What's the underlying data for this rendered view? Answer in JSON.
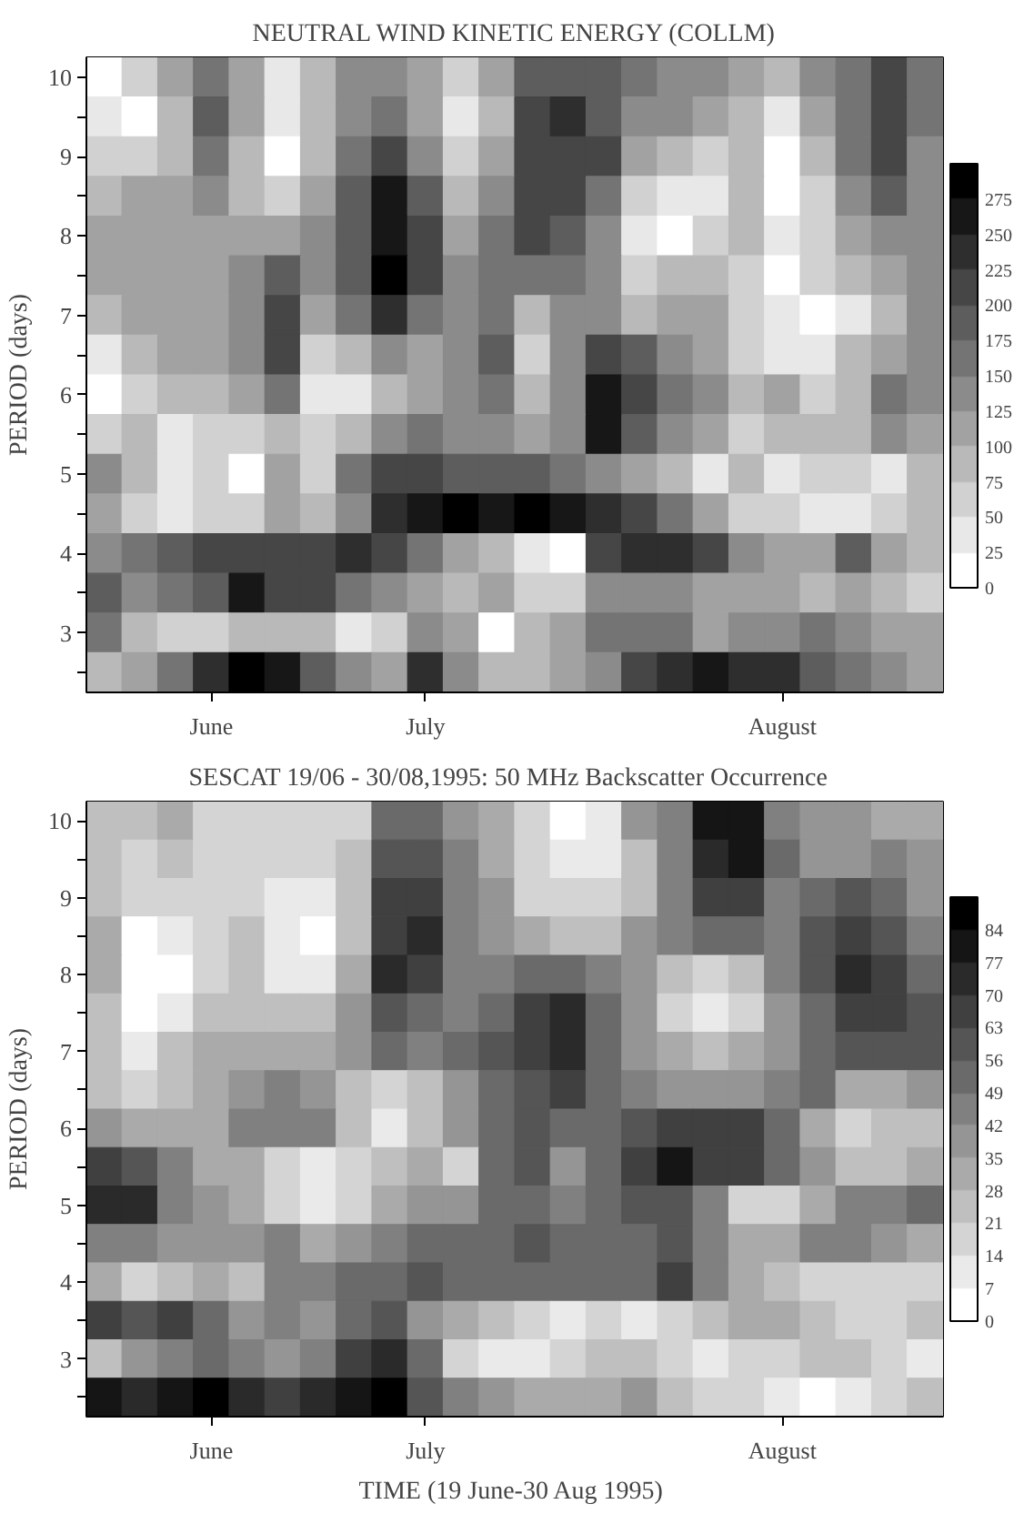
{
  "chart_data": [
    {
      "type": "heatmap",
      "title": "NEUTRAL WIND KINETIC ENERGY (COLLM)",
      "ylabel": "PERIOD (days)",
      "categories": [
        null,
        null,
        null,
        "June",
        null,
        null,
        null,
        null,
        null,
        "July",
        null,
        null,
        null,
        null,
        null,
        null,
        null,
        null,
        null,
        "August",
        null,
        null,
        null,
        null
      ],
      "y_categories": [
        "10",
        null,
        "9",
        null,
        "8",
        null,
        "7",
        null,
        "6",
        null,
        "5",
        null,
        "4",
        null,
        "3",
        null
      ],
      "clim": [
        0,
        300
      ],
      "cticks": [
        0,
        25,
        50,
        75,
        100,
        125,
        150,
        175,
        200,
        225,
        250,
        275
      ],
      "cells": [
        [
          12,
          62,
          112,
          162,
          112,
          37,
          87,
          137,
          137,
          112,
          62,
          112,
          187,
          187,
          187,
          162,
          137,
          137,
          112,
          87,
          137,
          162,
          212,
          162
        ],
        [
          37,
          12,
          87,
          187,
          112,
          37,
          87,
          137,
          162,
          112,
          37,
          87,
          212,
          237,
          187,
          137,
          137,
          112,
          87,
          37,
          112,
          162,
          212,
          162
        ],
        [
          62,
          62,
          87,
          162,
          87,
          12,
          87,
          162,
          212,
          137,
          62,
          112,
          212,
          212,
          212,
          112,
          87,
          62,
          87,
          12,
          87,
          162,
          212,
          137
        ],
        [
          87,
          112,
          112,
          137,
          87,
          62,
          112,
          187,
          262,
          187,
          87,
          137,
          212,
          212,
          162,
          62,
          37,
          37,
          87,
          12,
          62,
          137,
          187,
          137
        ],
        [
          112,
          112,
          112,
          112,
          112,
          112,
          137,
          187,
          262,
          212,
          112,
          162,
          212,
          187,
          137,
          37,
          12,
          62,
          87,
          37,
          62,
          112,
          137,
          137
        ],
        [
          112,
          112,
          112,
          112,
          137,
          187,
          137,
          187,
          287,
          212,
          137,
          162,
          162,
          162,
          137,
          62,
          87,
          87,
          62,
          12,
          62,
          87,
          112,
          137
        ],
        [
          87,
          112,
          112,
          112,
          137,
          212,
          112,
          162,
          237,
          162,
          137,
          162,
          87,
          137,
          137,
          87,
          112,
          112,
          62,
          37,
          12,
          37,
          87,
          137
        ],
        [
          37,
          87,
          112,
          112,
          137,
          212,
          62,
          87,
          137,
          112,
          137,
          187,
          62,
          137,
          212,
          187,
          137,
          112,
          62,
          37,
          37,
          87,
          112,
          137
        ],
        [
          12,
          62,
          87,
          87,
          112,
          162,
          37,
          37,
          87,
          112,
          137,
          162,
          87,
          137,
          262,
          212,
          162,
          137,
          87,
          112,
          62,
          87,
          162,
          137
        ],
        [
          62,
          87,
          37,
          62,
          62,
          87,
          62,
          87,
          137,
          162,
          137,
          137,
          112,
          137,
          262,
          187,
          137,
          112,
          62,
          87,
          87,
          87,
          137,
          112
        ],
        [
          137,
          87,
          37,
          62,
          12,
          112,
          62,
          162,
          212,
          212,
          187,
          187,
          187,
          162,
          137,
          112,
          87,
          37,
          87,
          37,
          62,
          62,
          37,
          87
        ],
        [
          112,
          62,
          37,
          62,
          62,
          112,
          87,
          137,
          237,
          262,
          287,
          262,
          287,
          262,
          237,
          212,
          162,
          112,
          62,
          62,
          37,
          37,
          62,
          87
        ],
        [
          137,
          162,
          187,
          212,
          212,
          212,
          212,
          237,
          212,
          162,
          112,
          87,
          37,
          12,
          212,
          237,
          237,
          212,
          137,
          112,
          112,
          187,
          112,
          87
        ],
        [
          187,
          137,
          162,
          187,
          262,
          212,
          212,
          162,
          137,
          112,
          87,
          112,
          62,
          62,
          137,
          137,
          137,
          112,
          112,
          112,
          87,
          112,
          87,
          62
        ],
        [
          162,
          87,
          62,
          62,
          87,
          87,
          87,
          37,
          62,
          137,
          112,
          12,
          87,
          112,
          162,
          162,
          162,
          112,
          137,
          137,
          162,
          137,
          112,
          112
        ],
        [
          87,
          112,
          162,
          237,
          287,
          262,
          187,
          137,
          112,
          237,
          137,
          87,
          87,
          112,
          137,
          212,
          237,
          262,
          237,
          237,
          187,
          162,
          137,
          112
        ]
      ]
    },
    {
      "type": "heatmap",
      "title": "SESCAT  19/06 - 30/08,1995:  50 MHz Backscatter Occurrence",
      "xlabel": "TIME  (19 June-30 Aug 1995)",
      "ylabel": "PERIOD (days)",
      "categories": [
        null,
        null,
        null,
        "June",
        null,
        null,
        null,
        null,
        null,
        "July",
        null,
        null,
        null,
        null,
        null,
        null,
        null,
        null,
        null,
        "August",
        null,
        null,
        null,
        null
      ],
      "y_categories": [
        "10",
        null,
        "9",
        null,
        "8",
        null,
        "7",
        null,
        "6",
        null,
        "5",
        null,
        "4",
        null,
        "3",
        null
      ],
      "clim": [
        0,
        91
      ],
      "cticks": [
        0,
        7,
        14,
        21,
        28,
        35,
        42,
        49,
        56,
        63,
        70,
        77,
        84
      ],
      "cells": [
        [
          24,
          24,
          31,
          17,
          17,
          17,
          17,
          17,
          52,
          52,
          38,
          31,
          17,
          3,
          10,
          38,
          45,
          80,
          80,
          45,
          38,
          38,
          31,
          31
        ],
        [
          24,
          17,
          24,
          17,
          17,
          17,
          17,
          24,
          59,
          59,
          45,
          31,
          17,
          10,
          10,
          24,
          45,
          73,
          80,
          52,
          38,
          38,
          45,
          38
        ],
        [
          24,
          17,
          17,
          17,
          17,
          10,
          10,
          24,
          66,
          66,
          45,
          38,
          17,
          17,
          17,
          24,
          45,
          66,
          66,
          45,
          52,
          59,
          52,
          38
        ],
        [
          31,
          3,
          10,
          17,
          24,
          10,
          3,
          24,
          66,
          73,
          45,
          38,
          31,
          24,
          24,
          38,
          45,
          52,
          52,
          45,
          59,
          66,
          59,
          45
        ],
        [
          31,
          3,
          3,
          17,
          24,
          10,
          10,
          31,
          73,
          66,
          45,
          45,
          52,
          52,
          45,
          38,
          24,
          17,
          24,
          45,
          59,
          73,
          66,
          52
        ],
        [
          24,
          3,
          10,
          24,
          24,
          24,
          24,
          38,
          59,
          52,
          45,
          52,
          66,
          73,
          52,
          38,
          17,
          10,
          17,
          38,
          52,
          66,
          66,
          59
        ],
        [
          24,
          10,
          24,
          31,
          31,
          31,
          31,
          38,
          52,
          45,
          52,
          59,
          66,
          73,
          52,
          38,
          31,
          24,
          31,
          38,
          52,
          59,
          59,
          59
        ],
        [
          24,
          17,
          24,
          31,
          38,
          45,
          38,
          24,
          17,
          24,
          38,
          52,
          59,
          66,
          52,
          45,
          38,
          38,
          38,
          45,
          52,
          31,
          31,
          38
        ],
        [
          38,
          31,
          31,
          31,
          45,
          45,
          45,
          24,
          10,
          24,
          38,
          52,
          59,
          52,
          52,
          59,
          66,
          66,
          66,
          52,
          31,
          17,
          24,
          24
        ],
        [
          66,
          59,
          45,
          31,
          31,
          17,
          10,
          17,
          24,
          31,
          17,
          52,
          59,
          38,
          52,
          66,
          80,
          66,
          66,
          52,
          38,
          24,
          24,
          31
        ],
        [
          73,
          73,
          45,
          38,
          31,
          17,
          10,
          17,
          31,
          38,
          38,
          52,
          52,
          45,
          52,
          59,
          59,
          45,
          17,
          17,
          31,
          45,
          45,
          52
        ],
        [
          45,
          45,
          38,
          38,
          38,
          45,
          31,
          38,
          45,
          52,
          52,
          52,
          59,
          52,
          52,
          52,
          59,
          45,
          31,
          31,
          45,
          45,
          38,
          31
        ],
        [
          31,
          17,
          24,
          31,
          24,
          45,
          45,
          52,
          52,
          59,
          52,
          52,
          52,
          52,
          52,
          52,
          66,
          45,
          31,
          24,
          17,
          17,
          17,
          17
        ],
        [
          66,
          59,
          66,
          52,
          38,
          45,
          38,
          52,
          59,
          38,
          31,
          24,
          17,
          10,
          17,
          10,
          17,
          24,
          31,
          31,
          24,
          17,
          17,
          24
        ],
        [
          24,
          38,
          45,
          52,
          45,
          38,
          45,
          66,
          73,
          52,
          17,
          10,
          10,
          17,
          24,
          24,
          17,
          10,
          17,
          17,
          24,
          24,
          17,
          10
        ],
        [
          80,
          73,
          80,
          87,
          73,
          66,
          73,
          80,
          87,
          59,
          45,
          38,
          31,
          31,
          31,
          38,
          24,
          17,
          17,
          10,
          3,
          10,
          17,
          24
        ]
      ]
    }
  ]
}
